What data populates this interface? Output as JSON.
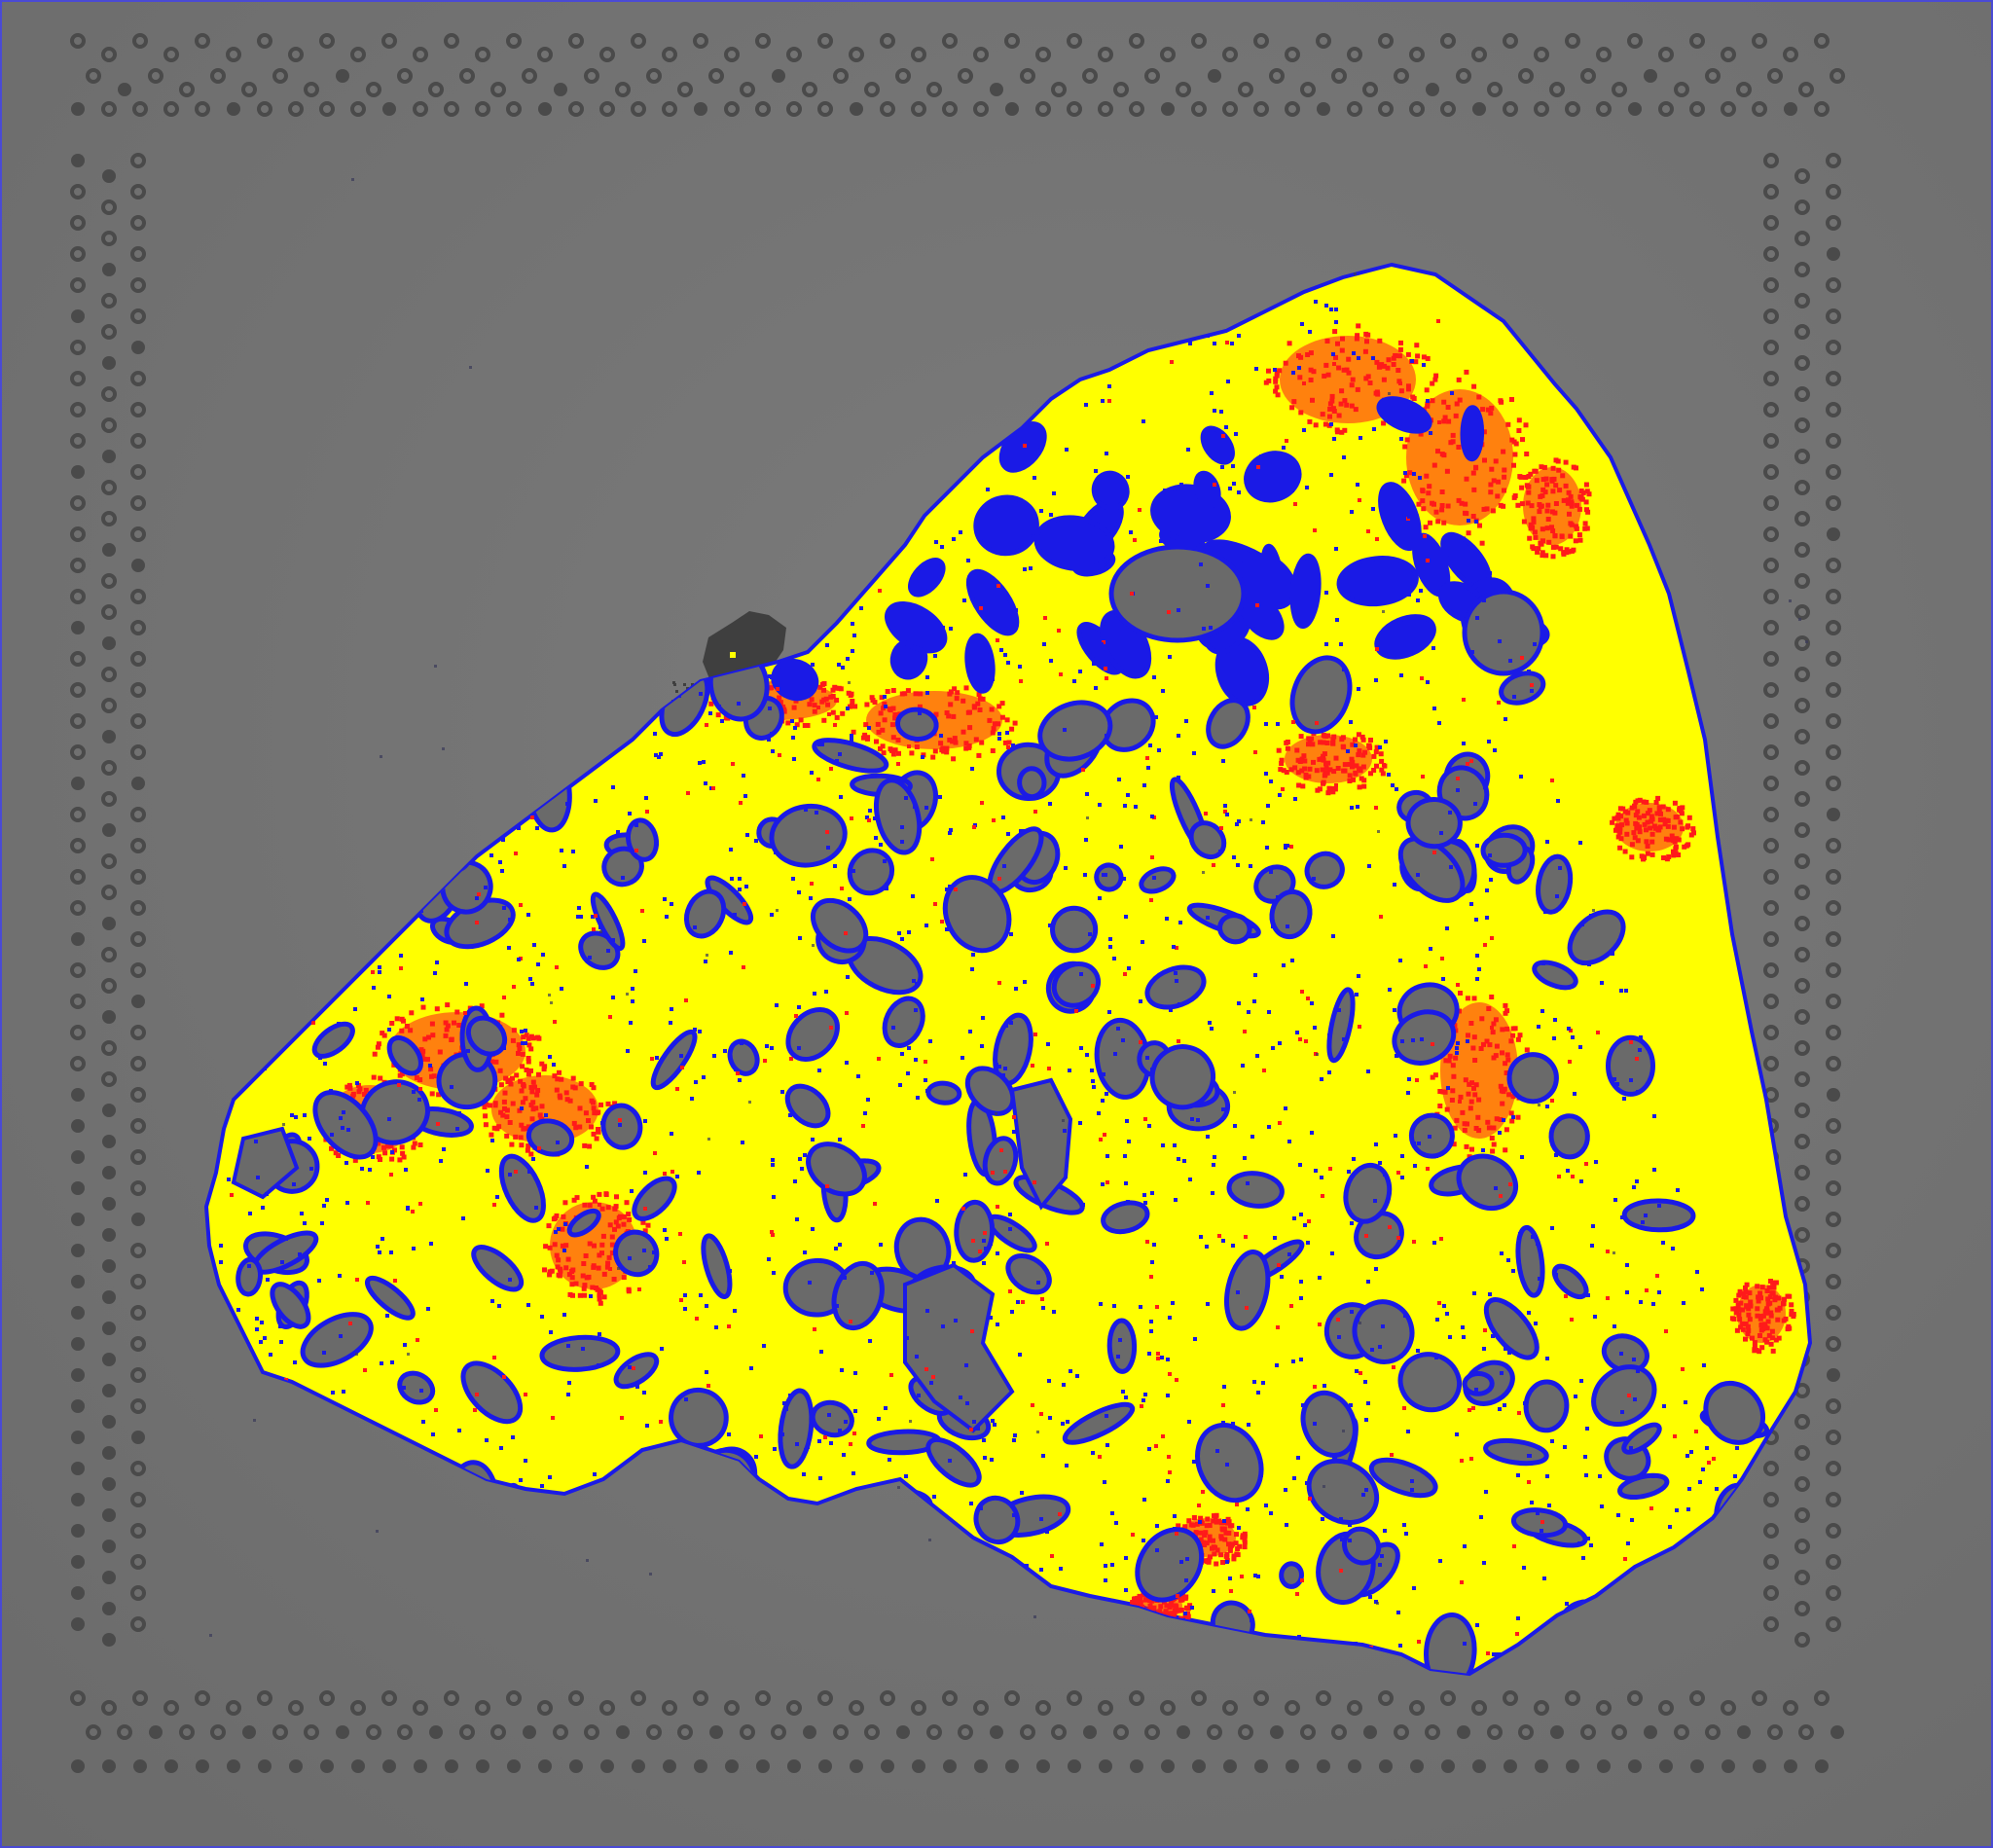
{
  "image": {
    "kind": "spatial-transcriptomics-slide-overlay",
    "description_visible_text": "",
    "colors": {
      "background": "#707070",
      "background_light": "#7a7a7a",
      "fiducial": "#4a4a4a",
      "tissue_yellow": "#ffff00",
      "cluster_blue": "#1a1ae6",
      "cluster_red": "#ff1a1a",
      "hole_gray": "#6a6a6a",
      "debris": "#3f3f3f",
      "frame_edge": "#3a3aff"
    },
    "fiducial_frame": {
      "icon": "ring-dots",
      "corner_marker_layout": "hourglass-top-left",
      "rows_per_side": 2
    },
    "tissue": {
      "shape": "wedge",
      "regions": [
        {
          "name": "capture-area-yellow",
          "color_key": "tissue_yellow"
        },
        {
          "name": "cluster-blue",
          "color_key": "cluster_blue"
        },
        {
          "name": "cluster-red",
          "color_key": "cluster_red"
        }
      ]
    }
  }
}
